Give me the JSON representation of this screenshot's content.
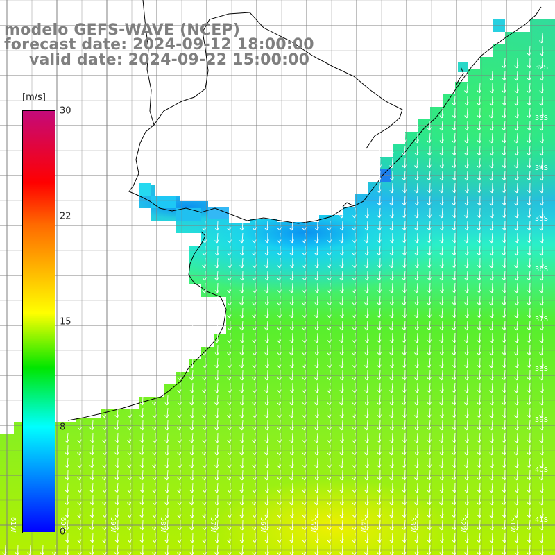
{
  "title": {
    "line1": "modelo GEFS-WAVE (NCEP)",
    "line2": "forecast date: 2024-09-12 18:00:00",
    "line3": "valid date: 2024-09-22 15:00:00"
  },
  "colorbar": {
    "units": "[m/s]",
    "ticks": [
      "30",
      "22",
      "15",
      "8",
      "0"
    ],
    "colors": [
      "#c40a7a",
      "#ff0000",
      "#ff6a00",
      "#ffff00",
      "#00e600",
      "#00ffff",
      "#007cff",
      "#0000ff"
    ]
  },
  "axes": {
    "lat_labels": [
      "32S",
      "33S",
      "34S",
      "35S",
      "36S",
      "37S",
      "38S",
      "39S",
      "40S",
      "41S"
    ],
    "lon_labels": [
      "61W",
      "60W",
      "59W",
      "58W",
      "57W",
      "56W",
      "55W",
      "54W",
      "53W",
      "52W",
      "51W"
    ]
  },
  "map_colors": {
    "land": "#ffffff",
    "grid": "#808080",
    "coast": "#000000",
    "vectors": "#ffffff"
  }
}
